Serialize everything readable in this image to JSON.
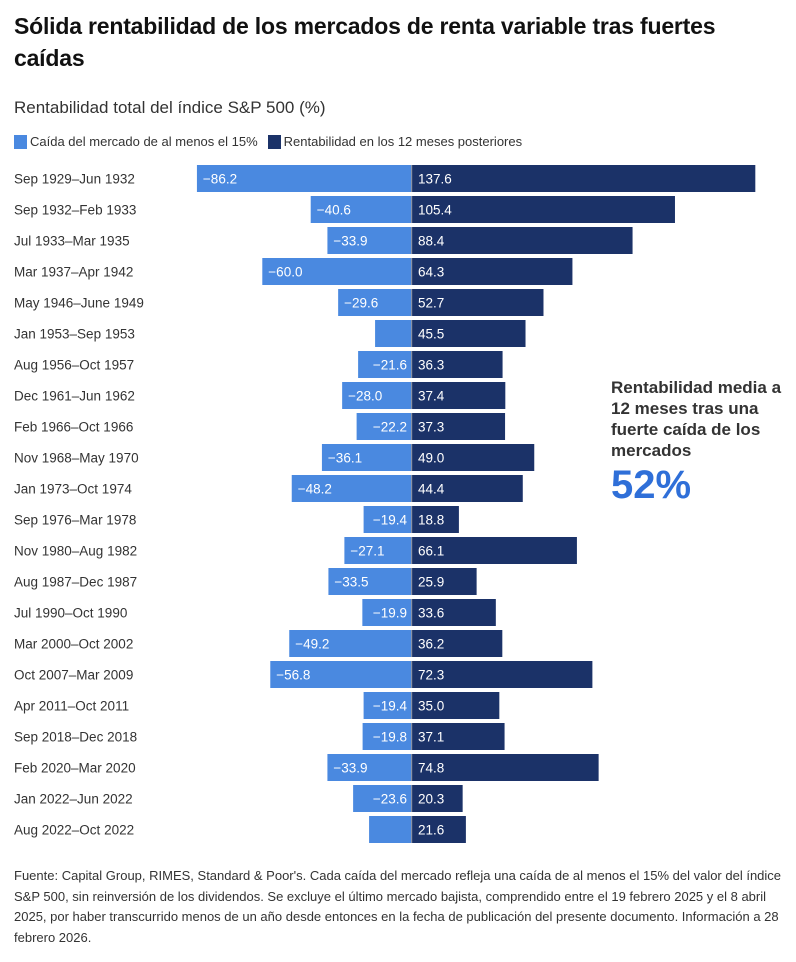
{
  "title": "Sólida rentabilidad de los mercados de renta variable tras fuertes caídas",
  "colors": {
    "decline": "#4A89E0",
    "return": "#1B3268",
    "zero_line": "#8a93a8",
    "accent": "#2F6FD8"
  },
  "callout": {
    "text": "Rentabilidad media a 12 meses tras una fuerte caída de los mercados",
    "value": "52%"
  },
  "footnote": "Fuente: Capital Group, RIMES, Standard & Poor's. Cada caída del mercado refleja una caída de al menos el 15% del valor del índice S&P 500, sin reinversión de los dividendos. Se excluye el último mercado bajista, comprendido entre el 19 febrero 2025 y el 8 abril 2025, por haber transcurrido menos de un año desde entonces en la fecha de publicación del presente documento. Información a 28 febrero 2026.",
  "chart_data": {
    "type": "bar",
    "orientation": "horizontal-diverging",
    "title": "Rentabilidad total del índice S&P 500 (%)",
    "legend_position": "top-left",
    "grid": false,
    "xlim": [
      -90,
      140
    ],
    "categories": [
      "Sep 1929–Jun 1932",
      "Sep 1932–Feb 1933",
      "Jul 1933–Mar 1935",
      "Mar 1937–Apr 1942",
      "May 1946–June 1949",
      "Jan 1953–Sep 1953",
      "Aug 1956–Oct 1957",
      "Dec 1961–Jun 1962",
      "Feb 1966–Oct 1966",
      "Nov 1968–May 1970",
      "Jan 1973–Oct 1974",
      "Sep 1976–Mar 1978",
      "Nov 1980–Aug 1982",
      "Aug 1987–Dec 1987",
      "Jul 1990–Oct 1990",
      "Mar 2000–Oct 2002",
      "Oct 2007–Mar 2009",
      "Apr 2011–Oct 2011",
      "Sep 2018–Dec 2018",
      "Feb 2020–Mar 2020",
      "Jan 2022–Jun 2022",
      "Aug 2022–Oct 2022"
    ],
    "series": [
      {
        "name": "Caída del mercado de al menos el 15%",
        "values": [
          -86.2,
          -40.6,
          -33.9,
          -60.0,
          -29.6,
          -14.8,
          -21.6,
          -28.0,
          -22.2,
          -36.1,
          -48.2,
          -19.4,
          -27.1,
          -33.5,
          -19.9,
          -49.2,
          -56.8,
          -19.4,
          -19.8,
          -33.9,
          -23.6,
          -17.2
        ],
        "labels": [
          "−86.2",
          "−40.6",
          "−33.9",
          "−60.0",
          "−29.6",
          "",
          "−21.6",
          "−28.0",
          "−22.2",
          "−36.1",
          "−48.2",
          "−19.4",
          "−27.1",
          "−33.5",
          "−19.9",
          "−49.2",
          "−56.8",
          "−19.4",
          "−19.8",
          "−33.9",
          "−23.6",
          ""
        ]
      },
      {
        "name": "Rentabilidad en los 12 meses posteriores",
        "values": [
          137.6,
          105.4,
          88.4,
          64.3,
          52.7,
          45.5,
          36.3,
          37.4,
          37.3,
          49.0,
          44.4,
          18.8,
          66.1,
          25.9,
          33.6,
          36.2,
          72.3,
          35.0,
          37.1,
          74.8,
          20.3,
          21.6
        ],
        "labels": [
          "137.6",
          "105.4",
          "88.4",
          "64.3",
          "52.7",
          "45.5",
          "36.3",
          "37.4",
          "37.3",
          "49.0",
          "44.4",
          "18.8",
          "66.1",
          "25.9",
          "33.6",
          "36.2",
          "72.3",
          "35.0",
          "37.1",
          "74.8",
          "20.3",
          "21.6"
        ]
      }
    ]
  }
}
